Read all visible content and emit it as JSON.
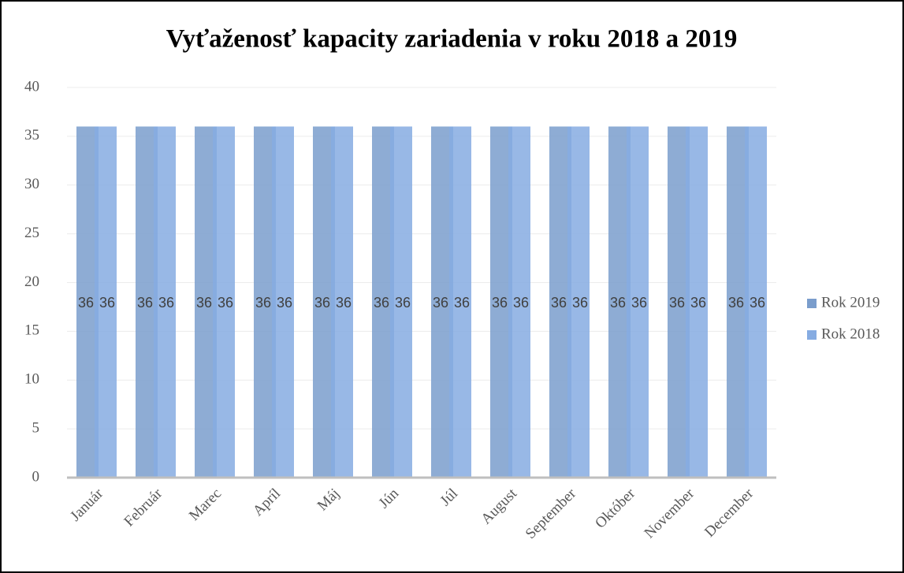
{
  "chart_data": {
    "type": "bar",
    "title": "Vyťaženosť kapacity zariadenia v roku 2018 a 2019",
    "categories": [
      "Január",
      "Február",
      "Marec",
      "Apríl",
      "Máj",
      "Jún",
      "Júl",
      "August",
      "September",
      "Október",
      "November",
      "December"
    ],
    "series": [
      {
        "name": "Rok 2019",
        "color": "#7a9dcc",
        "values": [
          36,
          36,
          36,
          36,
          36,
          36,
          36,
          36,
          36,
          36,
          36,
          36
        ]
      },
      {
        "name": "Rok 2018",
        "color": "#86ace2",
        "values": [
          36,
          36,
          36,
          36,
          36,
          36,
          36,
          36,
          36,
          36,
          36,
          36
        ]
      }
    ],
    "ylim": [
      0,
      40
    ],
    "yticks": [
      0,
      5,
      10,
      15,
      20,
      25,
      30,
      35,
      40
    ],
    "grid": true,
    "legend": "right"
  }
}
